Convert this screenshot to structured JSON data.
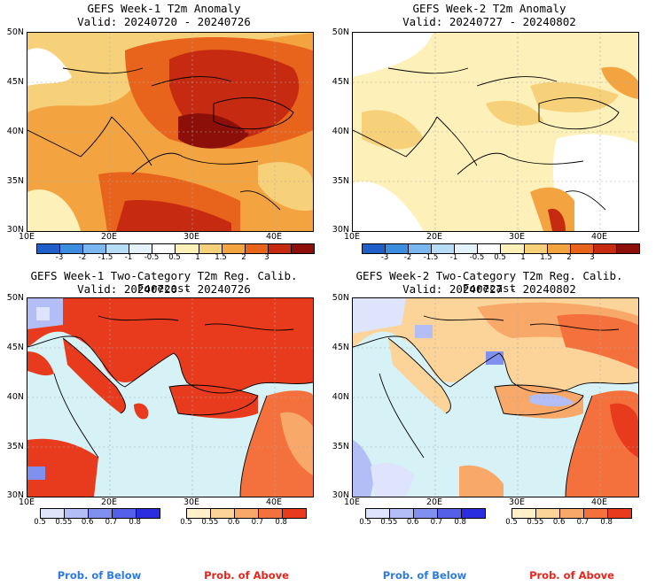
{
  "panels": [
    {
      "title": "GEFS Week-1 T2m Anomaly",
      "valid": "Valid: 20240720 - 20240726",
      "yticks": [
        "50N",
        "45N",
        "40N",
        "35N",
        "30N"
      ],
      "xticks": [
        "10E",
        "20E",
        "30E",
        "40E"
      ],
      "colorbar": [
        "-3",
        "-2",
        "-1.5",
        "-1",
        "-0.5",
        "0.5",
        "1",
        "1.5",
        "2",
        "3"
      ]
    },
    {
      "title": "GEFS Week-2 T2m Anomaly",
      "valid": "Valid: 20240727 - 20240802",
      "yticks": [
        "50N",
        "45N",
        "40N",
        "35N",
        "30N"
      ],
      "xticks": [
        "10E",
        "20E",
        "30E",
        "40E"
      ],
      "colorbar": [
        "-3",
        "-2",
        "-1.5",
        "-1",
        "-0.5",
        "0.5",
        "1",
        "1.5",
        "2",
        "3"
      ]
    },
    {
      "title": "GEFS Week-1 Two-Category T2m Reg. Calib. Forecast",
      "valid": "Valid: 20240720 - 20240726",
      "yticks": [
        "50N",
        "45N",
        "40N",
        "35N",
        "30N"
      ],
      "xticks": [
        "10E",
        "20E",
        "30E",
        "40E"
      ],
      "below_bar": [
        "0.5",
        "0.55",
        "0.6",
        "0.7",
        "0.8"
      ],
      "above_bar": [
        "0.5",
        "0.55",
        "0.6",
        "0.7",
        "0.8"
      ]
    },
    {
      "title": "GEFS Week-2 Two-Category T2m Reg. Calib. Forecast",
      "valid": "Valid: 20240727 - 20240802",
      "yticks": [
        "50N",
        "45N",
        "40N",
        "35N",
        "30N"
      ],
      "xticks": [
        "10E",
        "20E",
        "30E",
        "40E"
      ],
      "below_bar": [
        "0.5",
        "0.55",
        "0.6",
        "0.7",
        "0.8"
      ],
      "above_bar": [
        "0.5",
        "0.55",
        "0.6",
        "0.7",
        "0.8"
      ]
    }
  ],
  "footer": {
    "prob_below": "Prob. of Below",
    "prob_above": "Prob. of Above"
  },
  "colors": {
    "anomaly_scale": [
      "#1f5fc7",
      "#3c8de0",
      "#7ab6ef",
      "#b7dcf7",
      "#e4f2fb",
      "#ffffff",
      "#fdf0b8",
      "#f7d07a",
      "#f3a440",
      "#e8641c",
      "#c62a10",
      "#8c0f0a"
    ],
    "below_scale": [
      "#dde4fb",
      "#b2bef5",
      "#8090ee",
      "#5560e8",
      "#2a2ee0"
    ],
    "above_scale": [
      "#fff0c8",
      "#fcd49a",
      "#f8a868",
      "#f4703c",
      "#e83a1c"
    ],
    "sea": "#d6f2f7",
    "prob_below_text": "#2d7be0",
    "prob_above_text": "#e8251c"
  }
}
